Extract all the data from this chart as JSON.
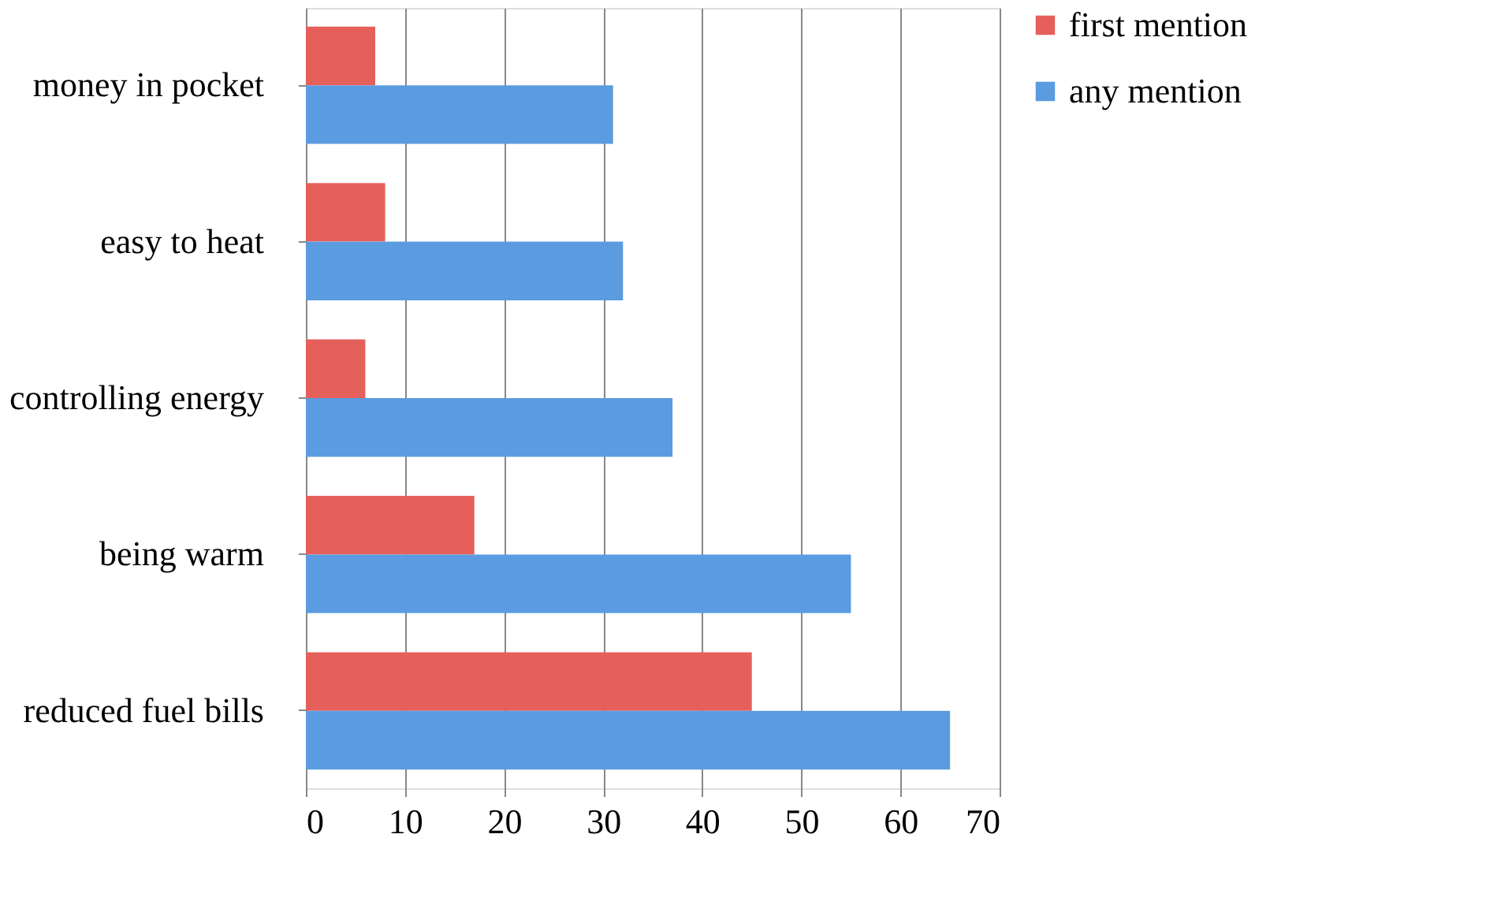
{
  "chart_data": {
    "type": "bar",
    "orientation": "horizontal",
    "categories": [
      "money in pocket",
      "easy to heat",
      "controlling energy",
      "being warm",
      "reduced fuel bills"
    ],
    "series": [
      {
        "name": "first mention",
        "color": "#e5605b",
        "values": [
          7,
          8,
          6,
          17,
          45
        ]
      },
      {
        "name": "any mention",
        "color": "#5b9be0",
        "values": [
          31,
          32,
          37,
          55,
          65
        ]
      }
    ],
    "xlim": [
      0,
      70
    ],
    "xticks": [
      0,
      10,
      20,
      30,
      40,
      50,
      60,
      70
    ],
    "grid": "x",
    "legend": "right"
  }
}
